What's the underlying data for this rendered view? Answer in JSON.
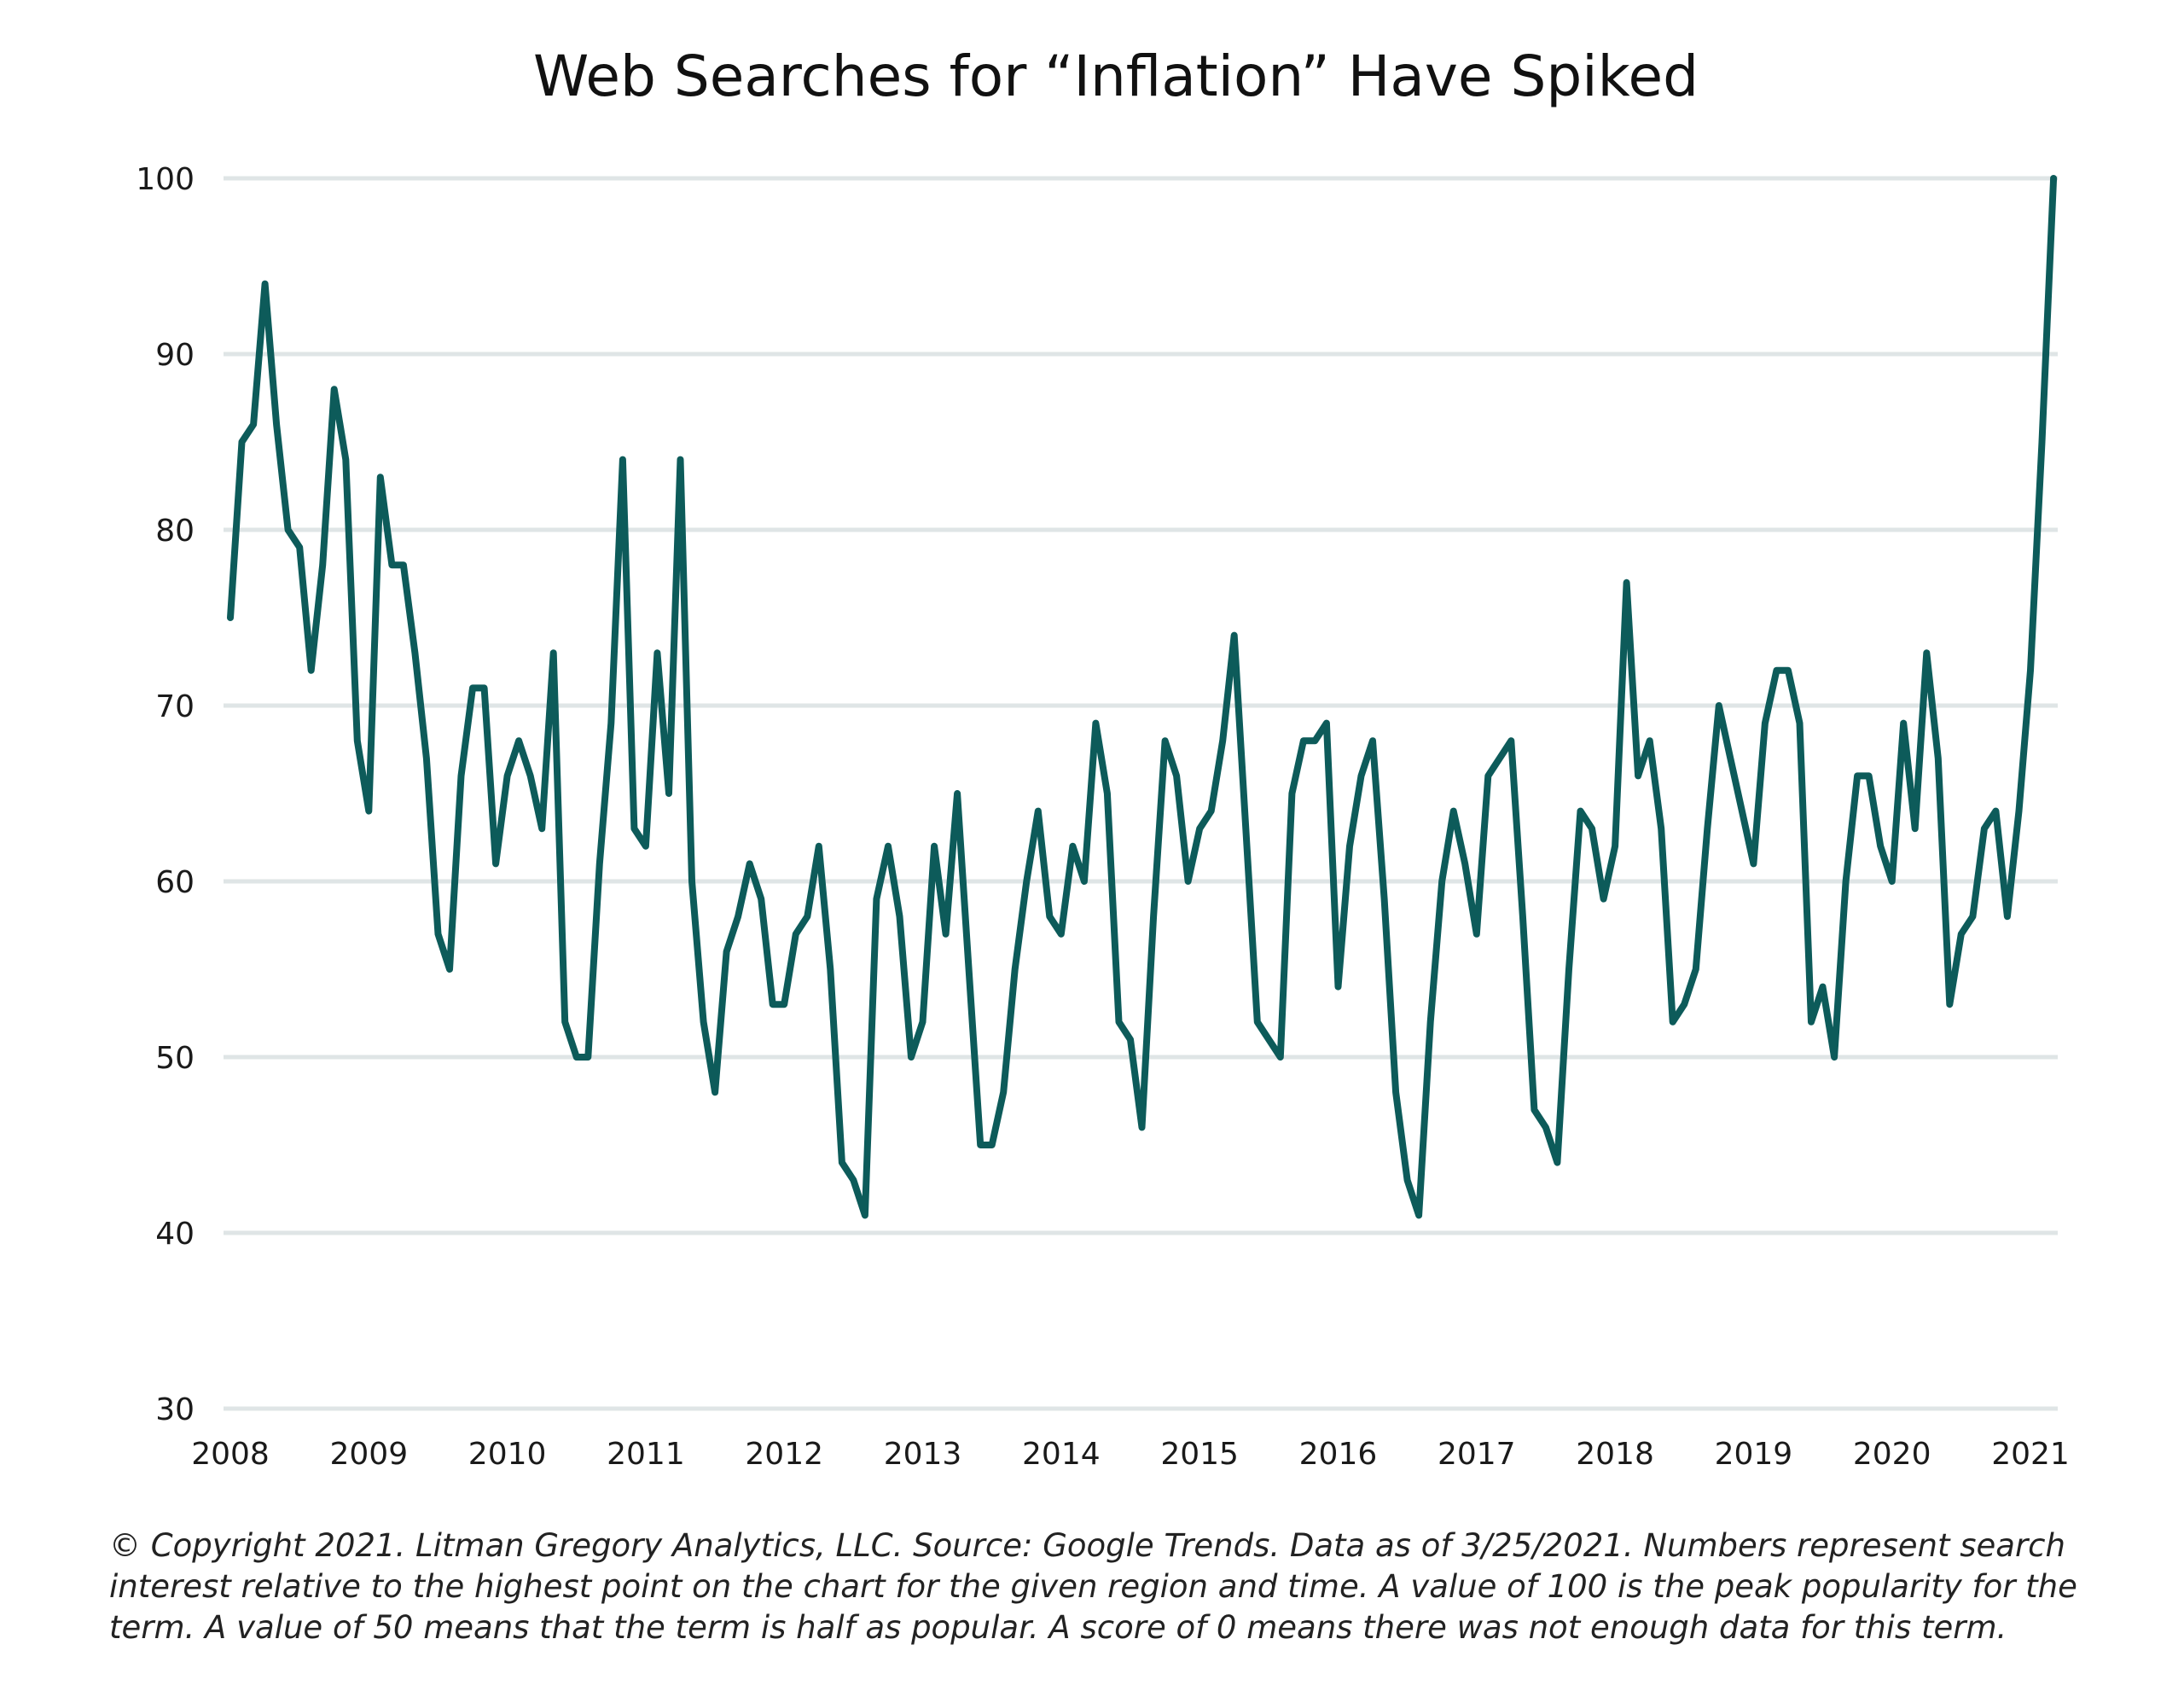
{
  "chart_data": {
    "type": "line",
    "title": "Web Searches for “Inflation” Have Spiked",
    "xlabel": "",
    "ylabel": "",
    "ylim": [
      30,
      100
    ],
    "yticks": [
      30,
      40,
      50,
      60,
      70,
      80,
      90,
      100
    ],
    "xticks": [
      "2008",
      "2009",
      "2010",
      "2011",
      "2012",
      "2013",
      "2014",
      "2015",
      "2016",
      "2017",
      "2018",
      "2019",
      "2020",
      "2021"
    ],
    "x_start": "2008-01",
    "x_end": "2021-03",
    "grid": true,
    "legend": "none",
    "line_color": "#0d5b5a",
    "series": [
      {
        "values": [
          75,
          85,
          86,
          94,
          86,
          80,
          79,
          72,
          78,
          88,
          84,
          68,
          64,
          83,
          78,
          78,
          73,
          67,
          57,
          55,
          66,
          71,
          71,
          61,
          66,
          68,
          66,
          63,
          73,
          52,
          50,
          50,
          61,
          69,
          84,
          63,
          62,
          73,
          65,
          84,
          60,
          52,
          48,
          56,
          58,
          61,
          59,
          53,
          53,
          57,
          58,
          62,
          55,
          44,
          43,
          41,
          59,
          62,
          58,
          50,
          52,
          62,
          57,
          65,
          55,
          45,
          45,
          48,
          55,
          60,
          64,
          58,
          57,
          62,
          60,
          69,
          65,
          52,
          51,
          46,
          58,
          68,
          66,
          60,
          63,
          64,
          68,
          74,
          63,
          52,
          51,
          50,
          65,
          68,
          68,
          69,
          54,
          62,
          66,
          68,
          59,
          48,
          43,
          41,
          52,
          60,
          64,
          61,
          57,
          66,
          67,
          68,
          58,
          47,
          46,
          44,
          55,
          64,
          63,
          59,
          62,
          77,
          66,
          68,
          63,
          52,
          53,
          55,
          63,
          70,
          67,
          64,
          61,
          69,
          72,
          72,
          69,
          52,
          54,
          50,
          60,
          66,
          66,
          62,
          60,
          69,
          63,
          73,
          67,
          53,
          57,
          58,
          63,
          64,
          58,
          64,
          72,
          85,
          100
        ]
      }
    ]
  },
  "footnote": "© Copyright 2021. Litman Gregory Analytics, LLC. Source: Google Trends. Data as of 3/25/2021. Numbers represent search interest relative to the highest point on the chart for the given region and time. A value of 100 is the peak popularity for the term. A value of 50 means that the term is half as popular. A score of 0 means there was not enough data for this term."
}
